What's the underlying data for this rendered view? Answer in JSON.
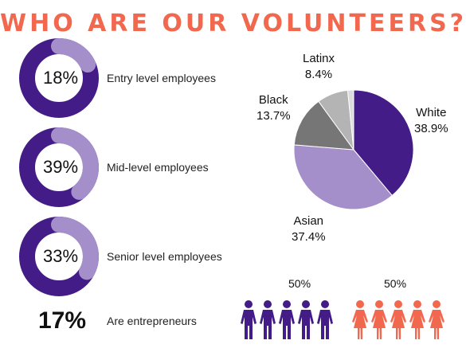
{
  "title": "WHO ARE OUR VOLUNTEERS?",
  "colors": {
    "title": "#f2684e",
    "purple": "#431c87",
    "lavender": "#a48fcb",
    "dark_gray": "#767676",
    "light_gray": "#b4b4b4",
    "coral": "#f2684e"
  },
  "levels": [
    {
      "pct": "18%",
      "value": 18,
      "label": "Entry level employees"
    },
    {
      "pct": "39%",
      "value": 39,
      "label": "Mid-level employees"
    },
    {
      "pct": "33%",
      "value": 33,
      "label": "Senior level employees"
    }
  ],
  "entrepreneurs": {
    "pct": "17%",
    "label": "Are entrepreneurs"
  },
  "chart_data": {
    "type": "pie",
    "slices": [
      {
        "name": "White",
        "value": 38.9,
        "label": "38.9%",
        "color": "#431c87"
      },
      {
        "name": "Asian",
        "value": 37.4,
        "label": "37.4%",
        "color": "#a48fcb"
      },
      {
        "name": "Black",
        "value": 13.7,
        "label": "13.7%",
        "color": "#767676"
      },
      {
        "name": "Latinx",
        "value": 8.4,
        "label": "8.4%",
        "color": "#b4b4b4"
      },
      {
        "name": "",
        "value": 1.6,
        "label": "",
        "color": "#dcdcdc"
      }
    ]
  },
  "gender": [
    {
      "pct": "50%",
      "value": 50,
      "icon": "male-person-icon",
      "color": "#431c87"
    },
    {
      "pct": "50%",
      "value": 50,
      "icon": "female-person-icon",
      "color": "#f2684e"
    }
  ]
}
